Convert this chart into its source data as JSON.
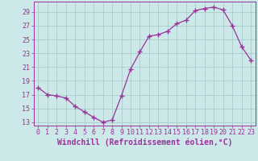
{
  "x": [
    0,
    1,
    2,
    3,
    4,
    5,
    6,
    7,
    8,
    9,
    10,
    11,
    12,
    13,
    14,
    15,
    16,
    17,
    18,
    19,
    20,
    21,
    22,
    23
  ],
  "y": [
    18.0,
    17.0,
    16.8,
    16.5,
    15.3,
    14.5,
    13.7,
    13.0,
    13.3,
    16.8,
    20.7,
    23.2,
    25.5,
    25.7,
    26.2,
    27.3,
    27.8,
    29.2,
    29.5,
    29.7,
    29.3,
    27.0,
    24.0,
    22.0
  ],
  "line_color": "#993399",
  "marker": "+",
  "marker_size": 4,
  "bg_color": "#cce8e8",
  "grid_color": "#aacccc",
  "xlabel": "Windchill (Refroidissement éolien,°C)",
  "ylim": [
    12.5,
    30.5
  ],
  "xlim": [
    -0.5,
    23.5
  ],
  "yticks": [
    13,
    15,
    17,
    19,
    21,
    23,
    25,
    27,
    29
  ],
  "xticks": [
    0,
    1,
    2,
    3,
    4,
    5,
    6,
    7,
    8,
    9,
    10,
    11,
    12,
    13,
    14,
    15,
    16,
    17,
    18,
    19,
    20,
    21,
    22,
    23
  ],
  "tick_color": "#993399",
  "label_color": "#993399",
  "spine_color": "#993399",
  "tick_fontsize": 6.0,
  "xlabel_fontsize": 7.0
}
